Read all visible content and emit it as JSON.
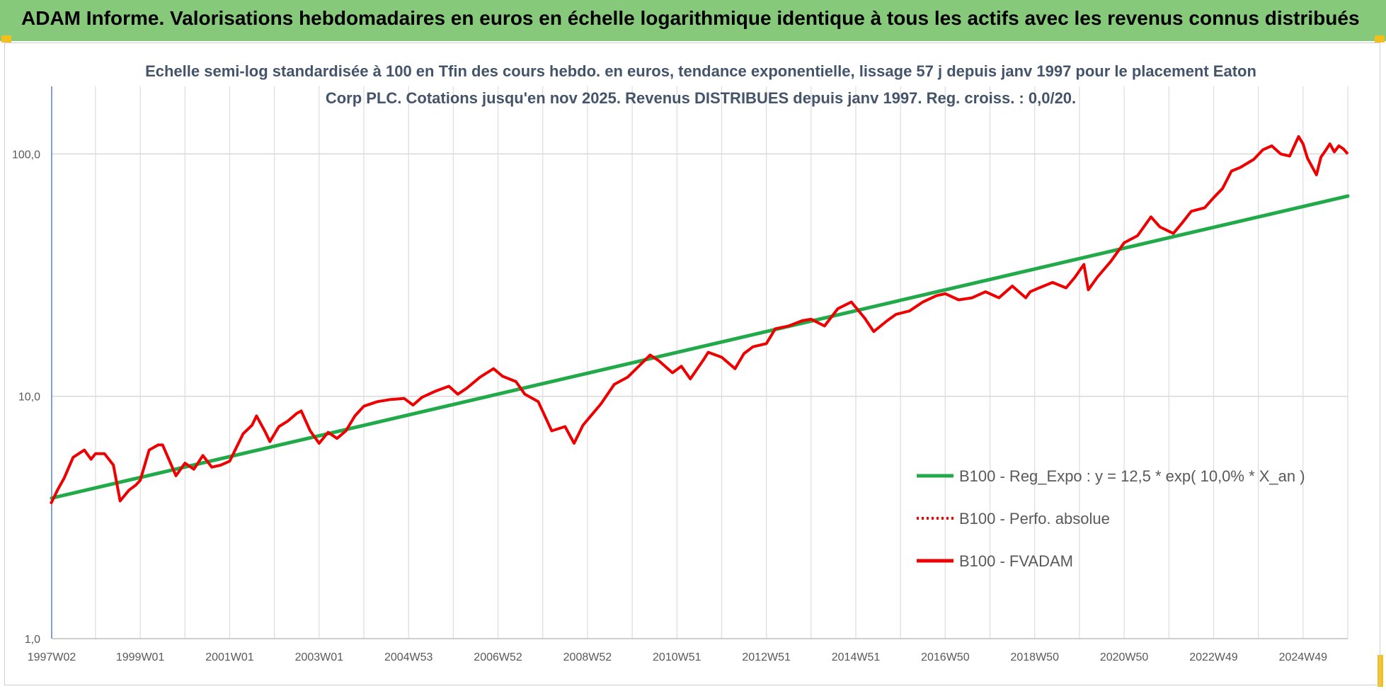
{
  "banner": {
    "title": "ADAM Informe. Valorisations hebdomadaires en euros en échelle logarithmique identique à tous les actifs avec les revenus connus distribués"
  },
  "colors": {
    "banner_bg": "#86c97a",
    "trend": "#22aa4a",
    "fvadam": "#ee0000",
    "subtitle": "#44546a"
  },
  "chart_data": {
    "type": "line",
    "title": "Echelle semi-log standardisée à 100 en Tfin des cours hebdo. en euros, tendance exponentielle, lissage 57 j depuis janv 1997 pour le placement Eaton Corp PLC. Cotations jusqu'en nov 2025. Revenus DISTRIBUES depuis janv 1997. Reg. croiss. : 0,0/20.",
    "y_scale": "log",
    "ylim": [
      1,
      190
    ],
    "y_ticks": [
      {
        "value": 1,
        "label": "1,0"
      },
      {
        "value": 10,
        "label": "10,0"
      },
      {
        "value": 100,
        "label": "100,0"
      }
    ],
    "xlim": [
      1997.02,
      2026.0
    ],
    "x_ticks": [
      {
        "value": 1997.02,
        "label": "1997W02"
      },
      {
        "value": 1999.0,
        "label": "1999W01"
      },
      {
        "value": 2001.0,
        "label": "2001W01"
      },
      {
        "value": 2003.0,
        "label": "2003W01"
      },
      {
        "value": 2005.0,
        "label": "2004W53"
      },
      {
        "value": 2007.0,
        "label": "2006W52"
      },
      {
        "value": 2009.0,
        "label": "2008W52"
      },
      {
        "value": 2011.0,
        "label": "2010W51"
      },
      {
        "value": 2013.0,
        "label": "2012W51"
      },
      {
        "value": 2015.0,
        "label": "2014W51"
      },
      {
        "value": 2017.0,
        "label": "2016W50"
      },
      {
        "value": 2019.0,
        "label": "2018W50"
      },
      {
        "value": 2021.0,
        "label": "2020W50"
      },
      {
        "value": 2023.0,
        "label": "2022W49"
      },
      {
        "value": 2025.0,
        "label": "2024W49"
      }
    ],
    "grid": true,
    "legend_position": "bottom-right",
    "series": [
      {
        "name": "B100 - Reg_Expo : y = 12,5 * exp( 10,0% *  X_an )",
        "style": "solid-green",
        "x": [
          1997.02,
          2026.0
        ],
        "y": [
          3.8,
          67
        ]
      },
      {
        "name": "B100 - Perfo. absolue",
        "style": "dotted-red",
        "x": [],
        "y": []
      },
      {
        "name": "B100 - FVADAM",
        "style": "solid-red",
        "x": [
          1997.0,
          1997.15,
          1997.3,
          1997.5,
          1997.75,
          1997.9,
          1998.0,
          1998.2,
          1998.4,
          1998.55,
          1998.75,
          1998.9,
          1999.0,
          1999.2,
          1999.4,
          1999.5,
          1999.8,
          2000.0,
          2000.2,
          2000.4,
          2000.6,
          2000.8,
          2001.0,
          2001.3,
          2001.5,
          2001.6,
          2001.8,
          2001.9,
          2002.1,
          2002.3,
          2002.5,
          2002.6,
          2002.8,
          2003.0,
          2003.2,
          2003.4,
          2003.6,
          2003.8,
          2004.0,
          2004.3,
          2004.6,
          2004.9,
          2005.1,
          2005.3,
          2005.6,
          2005.9,
          2006.1,
          2006.3,
          2006.6,
          2006.9,
          2007.1,
          2007.4,
          2007.6,
          2007.9,
          2008.2,
          2008.5,
          2008.7,
          2008.9,
          2009.1,
          2009.3,
          2009.6,
          2009.9,
          2010.2,
          2010.4,
          2010.6,
          2010.9,
          2011.1,
          2011.3,
          2011.6,
          2011.7,
          2012.0,
          2012.3,
          2012.5,
          2012.7,
          2013.0,
          2013.2,
          2013.5,
          2013.8,
          2014.0,
          2014.3,
          2014.6,
          2014.9,
          2015.2,
          2015.4,
          2015.7,
          2015.9,
          2016.2,
          2016.5,
          2016.8,
          2017.0,
          2017.3,
          2017.6,
          2017.9,
          2018.2,
          2018.5,
          2018.8,
          2018.9,
          2019.1,
          2019.4,
          2019.7,
          2019.9,
          2020.1,
          2020.2,
          2020.4,
          2020.7,
          2021.0,
          2021.3,
          2021.6,
          2021.8,
          2022.1,
          2022.3,
          2022.5,
          2022.8,
          2023.0,
          2023.2,
          2023.4,
          2023.6,
          2023.9,
          2024.1,
          2024.3,
          2024.5,
          2024.7,
          2024.9,
          2025.0,
          2025.1,
          2025.3,
          2025.4,
          2025.5,
          2025.6,
          2025.7,
          2025.8,
          2025.9,
          2026.0
        ],
        "y": [
          3.6,
          4.1,
          4.6,
          5.6,
          6.0,
          5.5,
          5.8,
          5.8,
          5.2,
          3.7,
          4.1,
          4.3,
          4.5,
          6.0,
          6.3,
          6.3,
          4.7,
          5.3,
          5.0,
          5.7,
          5.1,
          5.2,
          5.4,
          7.0,
          7.6,
          8.3,
          7.1,
          6.5,
          7.5,
          7.9,
          8.5,
          8.7,
          7.2,
          6.4,
          7.1,
          6.7,
          7.2,
          8.3,
          9.1,
          9.5,
          9.7,
          9.8,
          9.2,
          9.9,
          10.5,
          11.0,
          10.2,
          10.8,
          12.0,
          13.0,
          12.1,
          11.5,
          10.2,
          9.5,
          7.2,
          7.5,
          6.4,
          7.6,
          8.4,
          9.3,
          11.2,
          12.0,
          13.6,
          14.8,
          14.0,
          12.5,
          13.3,
          11.8,
          14.2,
          15.2,
          14.5,
          13.0,
          15.0,
          16.0,
          16.5,
          19.0,
          19.5,
          20.5,
          20.8,
          19.5,
          23.0,
          24.5,
          21.0,
          18.5,
          20.5,
          21.8,
          22.5,
          24.5,
          26.0,
          26.5,
          25.0,
          25.5,
          27.0,
          25.5,
          28.5,
          25.5,
          27.0,
          28.0,
          29.5,
          28.0,
          31.0,
          35.0,
          27.5,
          31.0,
          36.0,
          43.0,
          46.0,
          55.0,
          50.0,
          47.0,
          52.0,
          58.0,
          60.0,
          66.0,
          72.0,
          85.0,
          88.0,
          95.0,
          104.0,
          108.0,
          100.0,
          98.0,
          118.0,
          110.0,
          96.0,
          82.0,
          97.0,
          103.0,
          110.0,
          102.0,
          108.0,
          105.0,
          100.0
        ]
      }
    ]
  }
}
